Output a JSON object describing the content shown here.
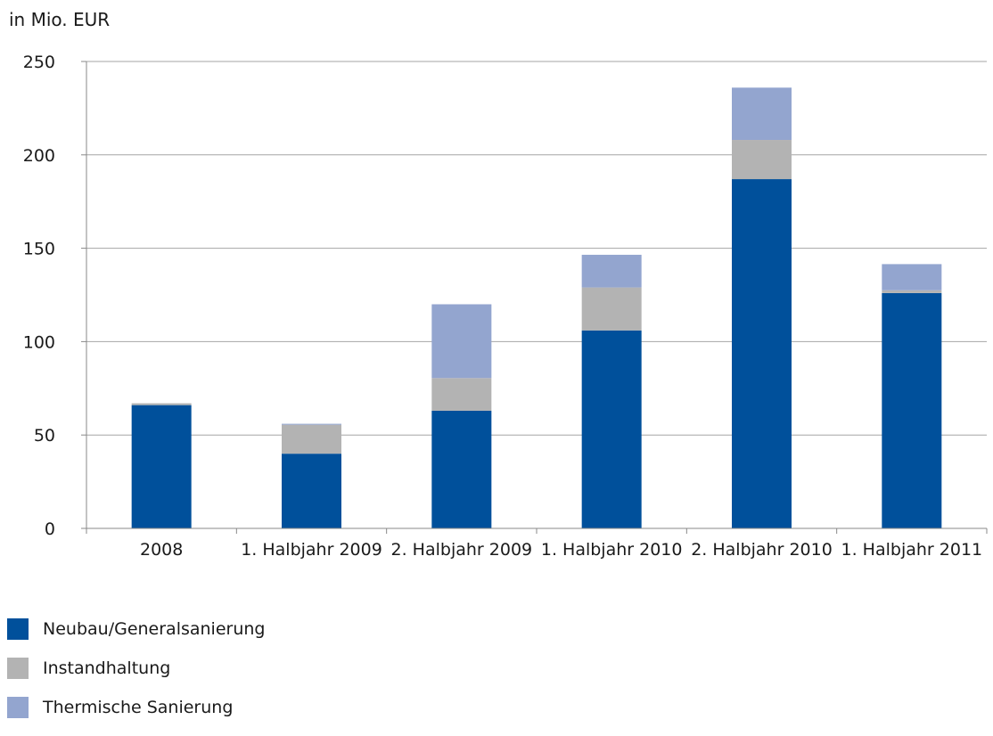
{
  "chart_data": {
    "type": "bar",
    "stacked": true,
    "ylabel": "in Mio. EUR",
    "ylim": [
      0,
      250
    ],
    "yticks": [
      0,
      50,
      100,
      150,
      200,
      250
    ],
    "grid": true,
    "legend_position": "bottom-left",
    "categories": [
      "2008",
      "1. Halbjahr 2009",
      "2. Halbjahr 2009",
      "1. Halbjahr 2010",
      "2. Halbjahr 2010",
      "1. Halbjahr 2011"
    ],
    "series": [
      {
        "name": "Neubau/Generalsanierung",
        "color": "#00509b",
        "values": [
          66,
          40,
          63,
          106,
          187,
          126
        ]
      },
      {
        "name": "Instandhaltung",
        "color": "#b3b3b3",
        "values": [
          1,
          15.5,
          17.5,
          23,
          21,
          1.5
        ]
      },
      {
        "name": "Thermische Sanierung",
        "color": "#93a5cf",
        "values": [
          0,
          0.5,
          39.5,
          17.5,
          28,
          14
        ]
      }
    ]
  }
}
